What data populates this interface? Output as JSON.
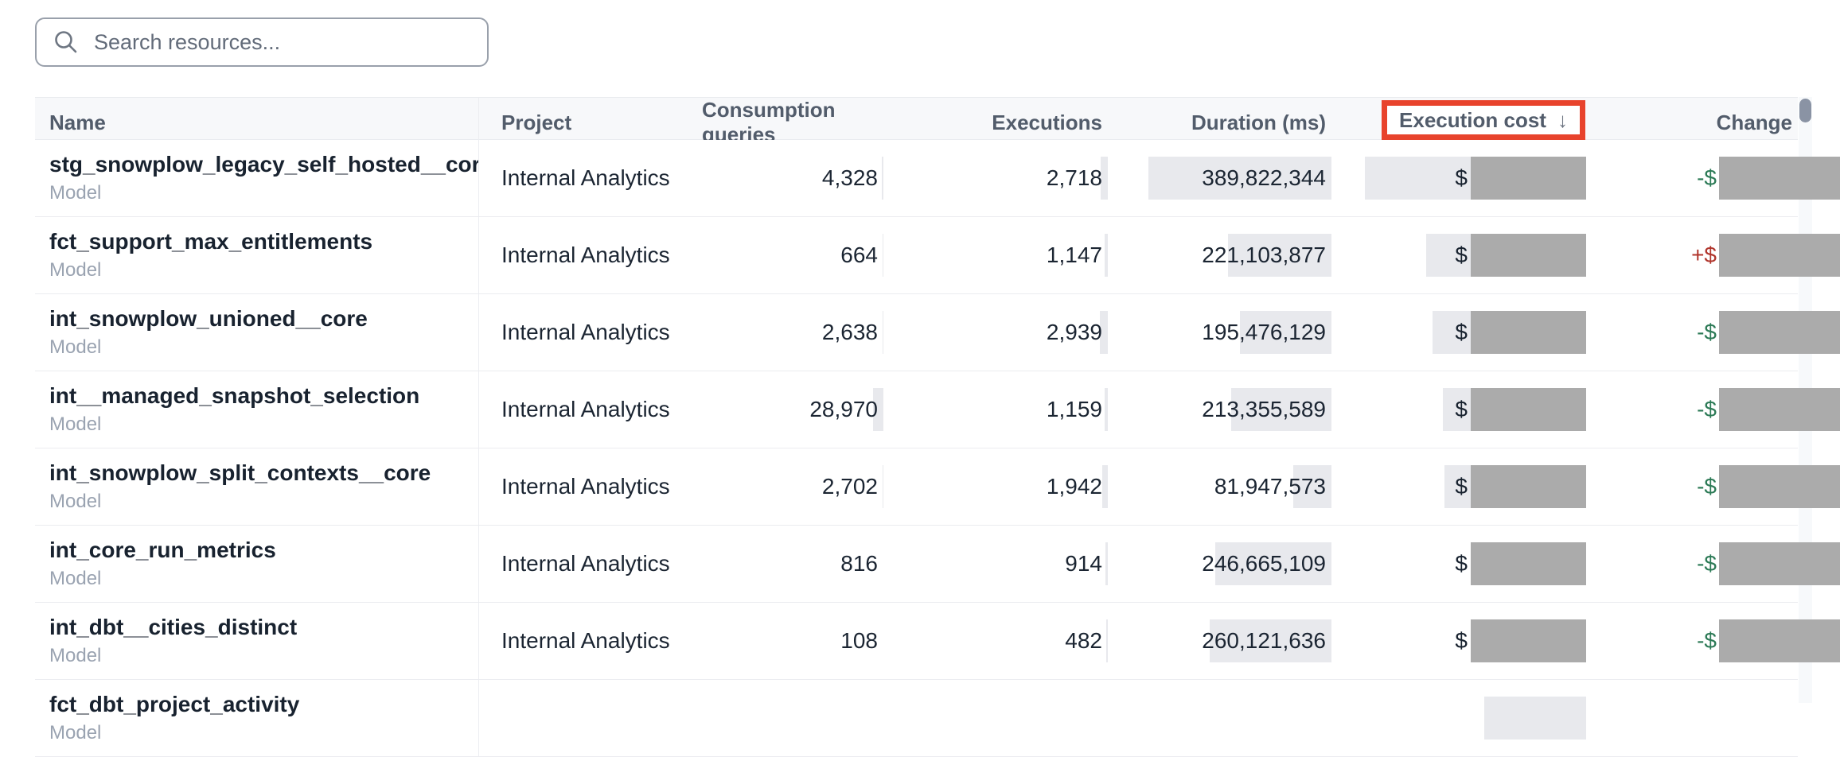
{
  "search": {
    "placeholder": "Search resources...",
    "icon": "search-icon"
  },
  "annotation": {
    "shape": "rectangle",
    "color": "#E8432C",
    "target": "Execution cost header"
  },
  "scrollbar": {
    "thumb_color": "#8A93A4",
    "position": "top"
  },
  "table": {
    "sort_arrow": "↓",
    "sorted_column": "Execution cost",
    "sort_direction": "desc",
    "columns": [
      {
        "key": "name",
        "label": "Name"
      },
      {
        "key": "project",
        "label": "Project"
      },
      {
        "key": "consumption",
        "label": "Consumption queries"
      },
      {
        "key": "executions",
        "label": "Executions"
      },
      {
        "key": "duration",
        "label": "Duration (ms)"
      },
      {
        "key": "cost",
        "label": "Execution cost"
      },
      {
        "key": "change",
        "label": "Change"
      }
    ],
    "rows": [
      {
        "name": "stg_snowplow_legacy_self_hosted__cor...",
        "type": "Model",
        "project": "Internal Analytics",
        "consumption": "4,328",
        "executions": "2,718",
        "duration": "389,822,344",
        "cost_prefix": "$",
        "cost_redacted": true,
        "change_prefix": "-$",
        "change_direction": "down",
        "change_redacted": true,
        "bars": {
          "consumption": 2,
          "executions": 9,
          "duration": 230,
          "cost": 278
        }
      },
      {
        "name": "fct_support_max_entitlements",
        "type": "Model",
        "project": "Internal Analytics",
        "consumption": "664",
        "executions": "1,147",
        "duration": "221,103,877",
        "cost_prefix": "$",
        "cost_redacted": true,
        "change_prefix": "+$",
        "change_direction": "up",
        "change_redacted": true,
        "bars": {
          "consumption": 1,
          "executions": 4,
          "duration": 130,
          "cost": 201
        }
      },
      {
        "name": "int_snowplow_unioned__core",
        "type": "Model",
        "project": "Internal Analytics",
        "consumption": "2,638",
        "executions": "2,939",
        "duration": "195,476,129",
        "cost_prefix": "$",
        "cost_redacted": true,
        "change_prefix": "-$",
        "change_direction": "down",
        "change_redacted": true,
        "bars": {
          "consumption": 1,
          "executions": 10,
          "duration": 115,
          "cost": 193
        }
      },
      {
        "name": "int__managed_snapshot_selection",
        "type": "Model",
        "project": "Internal Analytics",
        "consumption": "28,970",
        "executions": "1,159",
        "duration": "213,355,589",
        "cost_prefix": "$",
        "cost_redacted": true,
        "change_prefix": "-$",
        "change_direction": "down",
        "change_redacted": true,
        "bars": {
          "consumption": 13,
          "executions": 4,
          "duration": 126,
          "cost": 180
        }
      },
      {
        "name": "int_snowplow_split_contexts__core",
        "type": "Model",
        "project": "Internal Analytics",
        "consumption": "2,702",
        "executions": "1,942",
        "duration": "81,947,573",
        "cost_prefix": "$",
        "cost_redacted": true,
        "change_prefix": "-$",
        "change_direction": "down",
        "change_redacted": true,
        "bars": {
          "consumption": 1,
          "executions": 7,
          "duration": 48,
          "cost": 178
        }
      },
      {
        "name": "int_core_run_metrics",
        "type": "Model",
        "project": "Internal Analytics",
        "consumption": "816",
        "executions": "914",
        "duration": "246,665,109",
        "cost_prefix": "$",
        "cost_redacted": true,
        "change_prefix": "-$",
        "change_direction": "down",
        "change_redacted": true,
        "bars": {
          "consumption": 0,
          "executions": 3,
          "duration": 146,
          "cost": 140
        }
      },
      {
        "name": "int_dbt__cities_distinct",
        "type": "Model",
        "project": "Internal Analytics",
        "consumption": "108",
        "executions": "482",
        "duration": "260,121,636",
        "cost_prefix": "$",
        "cost_redacted": true,
        "change_prefix": "-$",
        "change_direction": "down",
        "change_redacted": true,
        "bars": {
          "consumption": 0,
          "executions": 2,
          "duration": 153,
          "cost": 135
        }
      },
      {
        "name": "fct_dbt_project_activity",
        "type": "Model",
        "project": "",
        "consumption": "",
        "executions": "",
        "duration": "",
        "cost_prefix": "",
        "cost_redacted": false,
        "change_prefix": "",
        "change_direction": "down",
        "change_redacted": false,
        "partial": true,
        "bars": {
          "consumption": 0,
          "executions": 0,
          "duration": 0,
          "cost": 128
        }
      }
    ]
  }
}
